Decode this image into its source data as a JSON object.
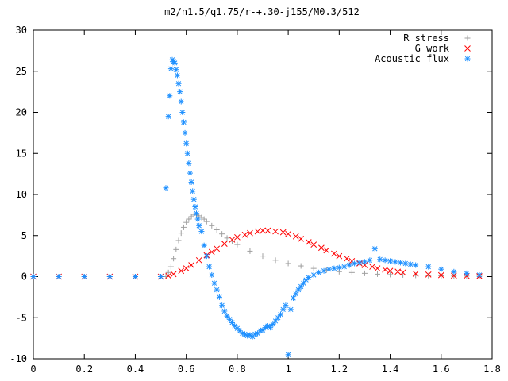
{
  "chart_data": {
    "type": "scatter",
    "title": "m2/n1.5/q1.75/r-+.30-j155/M0.3/512",
    "xlabel": "",
    "ylabel": "",
    "xlim": [
      0,
      1.8
    ],
    "ylim": [
      -10,
      30
    ],
    "x_ticks": [
      "0",
      "0.2",
      "0.4",
      "0.6",
      "0.8",
      "1",
      "1.2",
      "1.4",
      "1.6",
      "1.8"
    ],
    "y_ticks": [
      "-10",
      "-5",
      "0",
      "5",
      "10",
      "15",
      "20",
      "25",
      "30"
    ],
    "grid": false,
    "legend_position": "top-right",
    "series": [
      {
        "name": "R stress",
        "marker": "+",
        "color": "#a0a0a0",
        "x": [
          0.0,
          0.1,
          0.2,
          0.3,
          0.4,
          0.5,
          0.52,
          0.53,
          0.54,
          0.55,
          0.56,
          0.57,
          0.58,
          0.59,
          0.6,
          0.61,
          0.62,
          0.63,
          0.64,
          0.65,
          0.66,
          0.67,
          0.68,
          0.7,
          0.72,
          0.74,
          0.76,
          0.78,
          0.8,
          0.85,
          0.9,
          0.95,
          1.0,
          1.05,
          1.1,
          1.15,
          1.2,
          1.25,
          1.3,
          1.35,
          1.4,
          1.45,
          1.5,
          1.55,
          1.6,
          1.65,
          1.7,
          1.75
        ],
        "y": [
          0,
          0,
          0,
          0,
          0,
          0,
          0,
          0.5,
          1.2,
          2.2,
          3.3,
          4.4,
          5.3,
          6.0,
          6.6,
          7.0,
          7.3,
          7.5,
          7.5,
          7.4,
          7.2,
          7.0,
          6.7,
          6.2,
          5.7,
          5.2,
          4.7,
          4.3,
          3.9,
          3.1,
          2.5,
          2.0,
          1.6,
          1.3,
          1.0,
          0.8,
          0.6,
          0.5,
          0.4,
          0.3,
          0.25,
          0.2,
          0.15,
          0.12,
          0.1,
          0.08,
          0.06,
          0.05
        ]
      },
      {
        "name": "G work",
        "marker": "x",
        "color": "#ff0000",
        "x": [
          0.0,
          0.1,
          0.2,
          0.3,
          0.4,
          0.5,
          0.53,
          0.55,
          0.58,
          0.6,
          0.62,
          0.65,
          0.68,
          0.7,
          0.72,
          0.75,
          0.78,
          0.8,
          0.83,
          0.85,
          0.88,
          0.9,
          0.92,
          0.95,
          0.98,
          1.0,
          1.03,
          1.05,
          1.08,
          1.1,
          1.13,
          1.15,
          1.18,
          1.2,
          1.23,
          1.25,
          1.28,
          1.3,
          1.33,
          1.35,
          1.38,
          1.4,
          1.43,
          1.45,
          1.5,
          1.55,
          1.6,
          1.65,
          1.7,
          1.75
        ],
        "y": [
          0,
          0,
          0,
          0,
          0,
          0,
          0.1,
          0.3,
          0.7,
          1.0,
          1.4,
          2.0,
          2.6,
          3.0,
          3.4,
          4.0,
          4.5,
          4.8,
          5.1,
          5.3,
          5.5,
          5.6,
          5.6,
          5.5,
          5.4,
          5.2,
          4.9,
          4.6,
          4.2,
          3.9,
          3.5,
          3.2,
          2.8,
          2.5,
          2.2,
          1.9,
          1.6,
          1.4,
          1.2,
          1.0,
          0.85,
          0.7,
          0.6,
          0.5,
          0.35,
          0.25,
          0.18,
          0.12,
          0.08,
          0.05
        ]
      },
      {
        "name": "Acoustic flux",
        "marker": "*",
        "color": "#1e90ff",
        "x": [
          0.0,
          0.1,
          0.2,
          0.3,
          0.4,
          0.5,
          0.52,
          0.53,
          0.535,
          0.54,
          0.545,
          0.55,
          0.555,
          0.56,
          0.565,
          0.57,
          0.575,
          0.58,
          0.585,
          0.59,
          0.595,
          0.6,
          0.605,
          0.61,
          0.615,
          0.62,
          0.625,
          0.63,
          0.635,
          0.64,
          0.645,
          0.65,
          0.66,
          0.67,
          0.68,
          0.69,
          0.7,
          0.71,
          0.72,
          0.73,
          0.74,
          0.75,
          0.76,
          0.77,
          0.78,
          0.79,
          0.8,
          0.81,
          0.82,
          0.83,
          0.84,
          0.85,
          0.86,
          0.87,
          0.88,
          0.89,
          0.9,
          0.91,
          0.92,
          0.93,
          0.94,
          0.95,
          0.96,
          0.97,
          0.98,
          0.99,
          1.0,
          1.01,
          1.02,
          1.03,
          1.04,
          1.05,
          1.06,
          1.07,
          1.08,
          1.1,
          1.12,
          1.14,
          1.16,
          1.18,
          1.2,
          1.22,
          1.24,
          1.26,
          1.28,
          1.3,
          1.32,
          1.34,
          1.36,
          1.38,
          1.4,
          1.42,
          1.44,
          1.46,
          1.48,
          1.5,
          1.55,
          1.6,
          1.65,
          1.7,
          1.75
        ],
        "y": [
          0,
          0,
          0,
          0,
          0,
          0,
          10.8,
          19.5,
          22.0,
          25.3,
          26.4,
          26.2,
          26.0,
          25.2,
          24.5,
          23.5,
          22.5,
          21.3,
          20.0,
          18.8,
          17.5,
          16.2,
          15.0,
          13.8,
          12.6,
          11.5,
          10.4,
          9.4,
          8.5,
          7.7,
          7.0,
          6.2,
          5.5,
          3.8,
          2.5,
          1.2,
          0.2,
          -0.8,
          -1.6,
          -2.5,
          -3.5,
          -4.2,
          -4.8,
          -5.2,
          -5.6,
          -6.0,
          -6.3,
          -6.6,
          -6.9,
          -7.0,
          -7.2,
          -7.1,
          -7.3,
          -7.0,
          -6.9,
          -6.6,
          -6.5,
          -6.2,
          -6.0,
          -6.2,
          -5.8,
          -5.4,
          -5.0,
          -4.6,
          -4.0,
          -3.5,
          -9.5,
          -4.0,
          -2.6,
          -2.1,
          -1.6,
          -1.2,
          -0.8,
          -0.4,
          -0.1,
          0.2,
          0.5,
          0.7,
          0.9,
          1.0,
          1.1,
          1.2,
          1.4,
          1.6,
          1.7,
          1.8,
          2.0,
          3.4,
          2.1,
          2.0,
          1.9,
          1.8,
          1.7,
          1.6,
          1.5,
          1.4,
          1.2,
          0.9,
          0.6,
          0.4,
          0.2
        ]
      }
    ]
  }
}
